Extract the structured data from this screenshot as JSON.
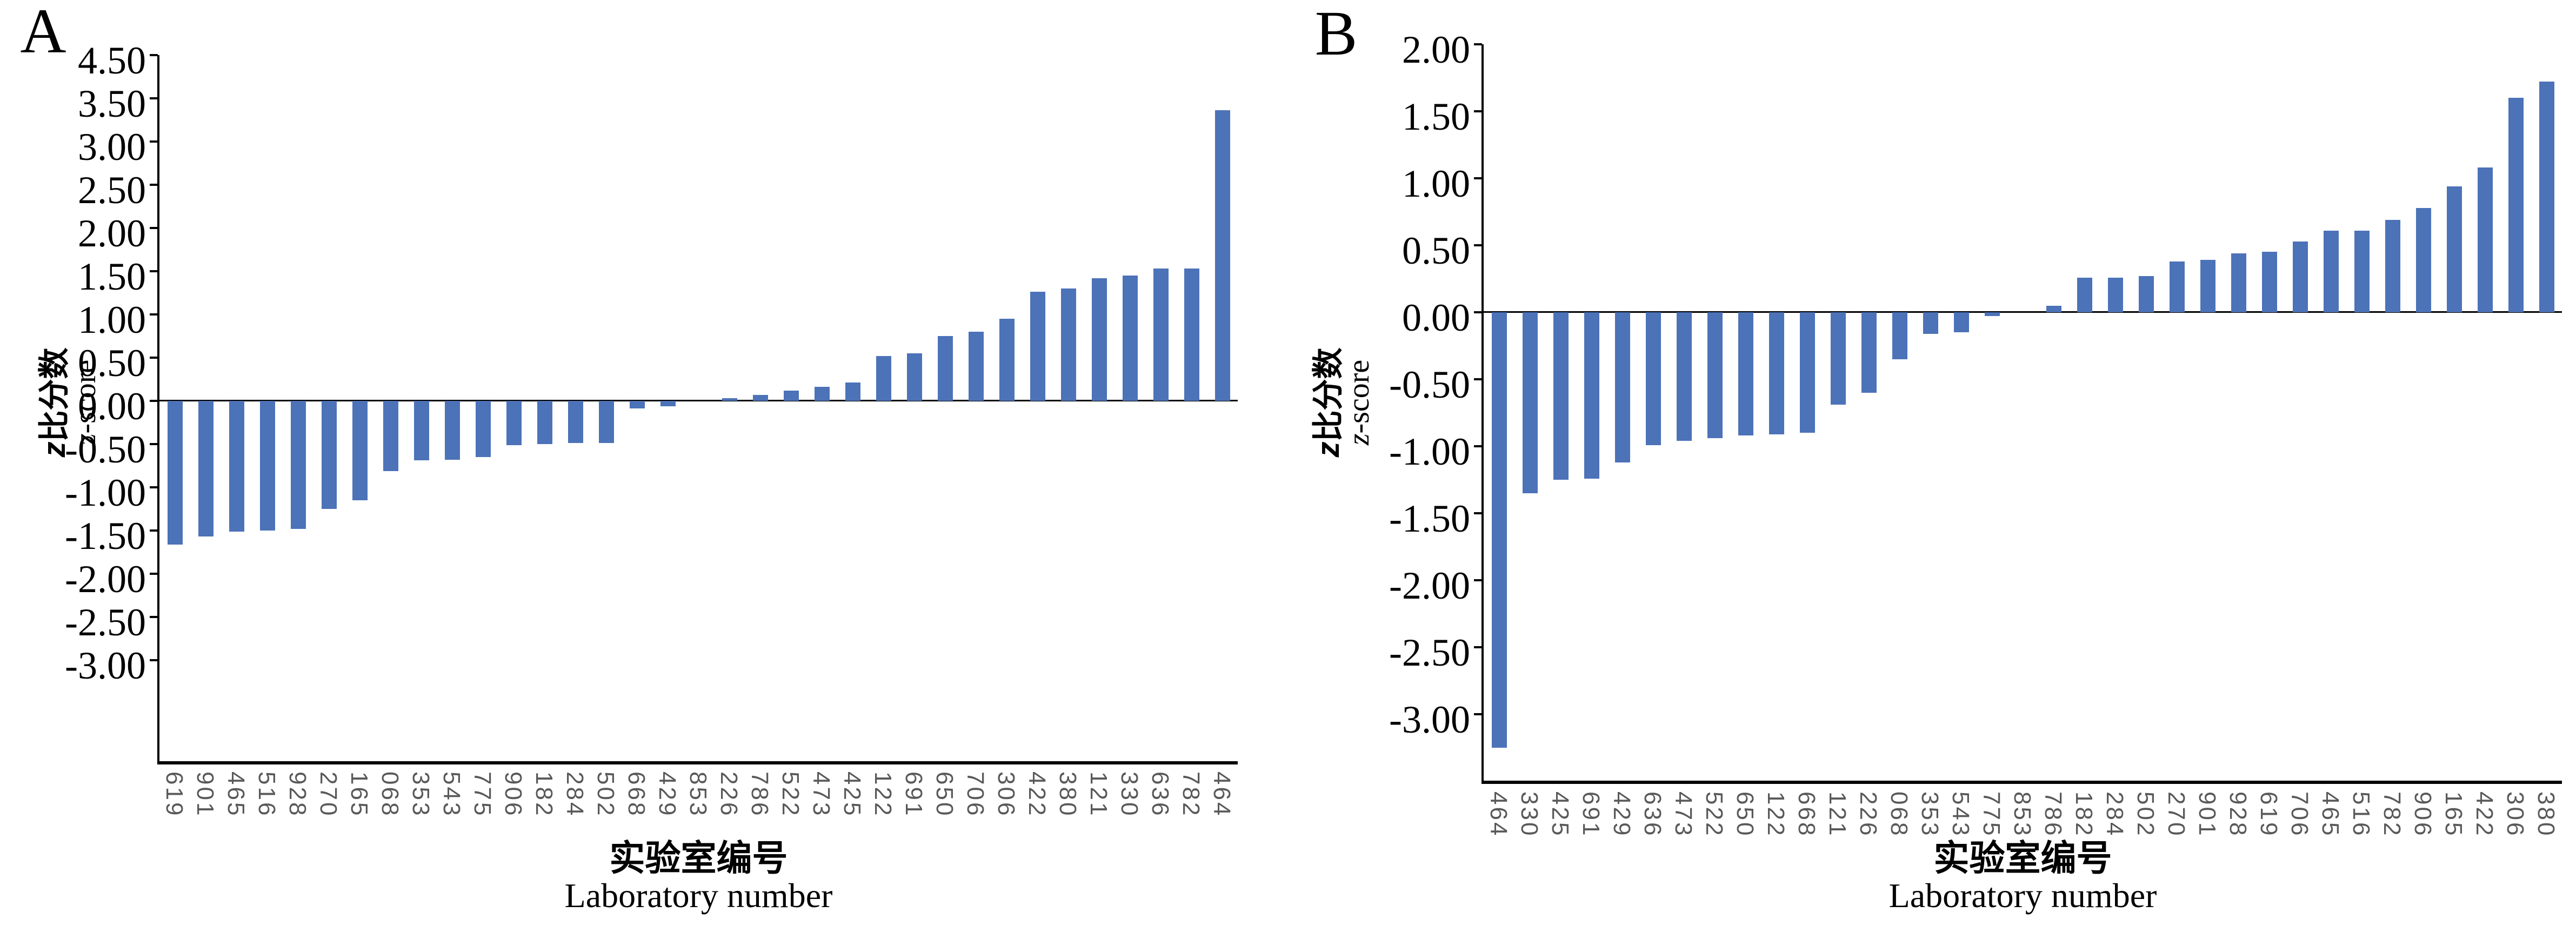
{
  "figure_title": "",
  "bar_color": "#4C72B8",
  "axis_color": "#000000",
  "x_tick_color": "#595959",
  "chart_data": [
    {
      "type": "bar",
      "panel": "A",
      "title": "A",
      "xlabel_zh": "实验室编号",
      "xlabel_en": "Laboratory number",
      "ylabel_zh_prefix": "z",
      "ylabel_zh": "比分数",
      "ylabel_en_prefix": "z",
      "ylabel_en": "-score",
      "legend_position": "none",
      "grid": false,
      "y_tick_labels": [
        "4.50",
        "3.50",
        "3.00",
        "2.50",
        "2.00",
        "1.50",
        "1.00",
        "0.50",
        "0.00",
        "-0.50",
        "-1.00",
        "-1.50",
        "-2.00",
        "-2.50",
        "-3.00"
      ],
      "zero_tick_index": 8,
      "y_unit_per_tick": 0.5,
      "categories": [
        "619",
        "901",
        "465",
        "516",
        "928",
        "270",
        "165",
        "068",
        "353",
        "543",
        "775",
        "906",
        "182",
        "284",
        "502",
        "668",
        "429",
        "853",
        "226",
        "786",
        "522",
        "473",
        "425",
        "122",
        "691",
        "650",
        "706",
        "306",
        "422",
        "380",
        "121",
        "330",
        "636",
        "782",
        "464"
      ],
      "values": [
        -1.66,
        -1.57,
        -1.51,
        -1.5,
        -1.48,
        -1.25,
        -1.15,
        -0.81,
        -0.69,
        -0.68,
        -0.65,
        -0.51,
        -0.5,
        -0.49,
        -0.49,
        -0.09,
        -0.06,
        0.0,
        0.03,
        0.07,
        0.12,
        0.16,
        0.21,
        0.52,
        0.55,
        0.75,
        0.8,
        0.95,
        1.26,
        1.3,
        1.42,
        1.45,
        1.53,
        1.53,
        3.36
      ]
    },
    {
      "type": "bar",
      "panel": "B",
      "title": "B",
      "xlabel_zh": "实验室编号",
      "xlabel_en": "Laboratory number",
      "ylabel_zh_prefix": "z",
      "ylabel_zh": "比分数",
      "ylabel_en_prefix": "z",
      "ylabel_en": "-score",
      "legend_position": "none",
      "grid": false,
      "y_tick_labels": [
        "2.00",
        "1.50",
        "1.00",
        "0.50",
        "0.00",
        "-0.50",
        "-1.00",
        "-1.50",
        "-2.00",
        "-2.50",
        "-3.00"
      ],
      "zero_tick_index": 4,
      "y_unit_per_tick": 0.5,
      "categories": [
        "464",
        "330",
        "425",
        "691",
        "429",
        "636",
        "473",
        "522",
        "650",
        "122",
        "668",
        "121",
        "226",
        "068",
        "353",
        "543",
        "775",
        "853",
        "786",
        "182",
        "284",
        "502",
        "270",
        "901",
        "928",
        "619",
        "706",
        "465",
        "516",
        "782",
        "906",
        "165",
        "422",
        "306",
        "380"
      ],
      "values": [
        -3.25,
        -1.35,
        -1.25,
        -1.24,
        -1.12,
        -0.99,
        -0.96,
        -0.94,
        -0.92,
        -0.91,
        -0.9,
        -0.69,
        -0.6,
        -0.35,
        -0.16,
        -0.15,
        -0.03,
        0.0,
        0.05,
        0.26,
        0.26,
        0.27,
        0.38,
        0.39,
        0.44,
        0.45,
        0.53,
        0.61,
        0.61,
        0.69,
        0.78,
        0.94,
        1.08,
        1.6,
        1.72
      ]
    }
  ]
}
